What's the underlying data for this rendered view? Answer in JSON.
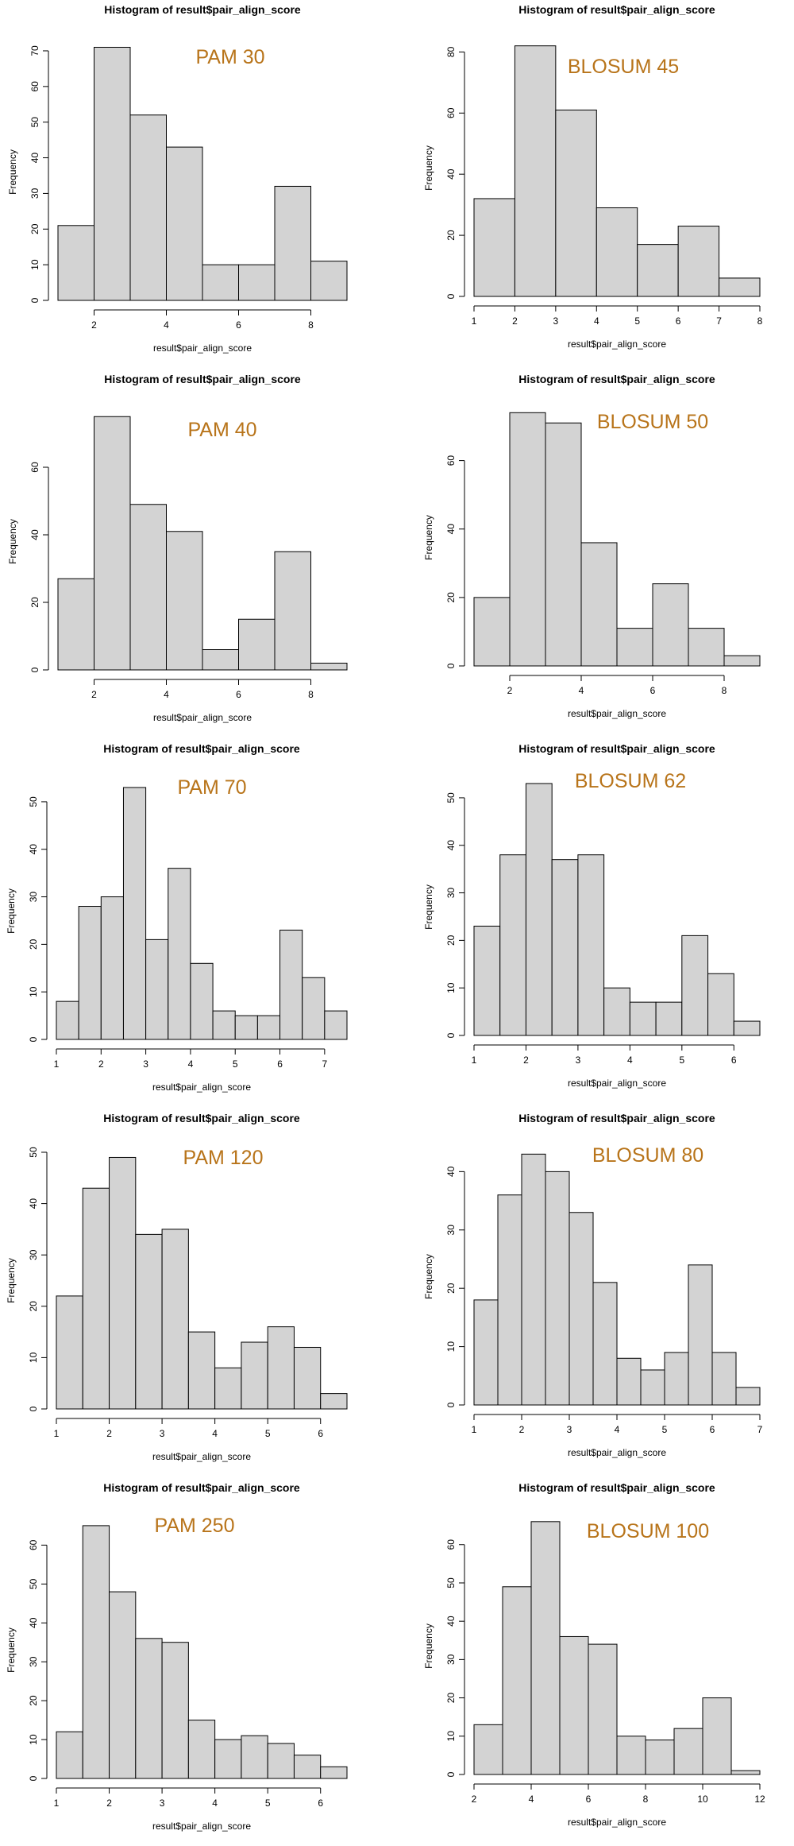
{
  "colors": {
    "bar_fill": "#d3d3d3",
    "bar_stroke": "#000000",
    "annotation": "#b8741a"
  },
  "chart_data": [
    {
      "type": "bar",
      "title": "Histogram of result$pair_align_score",
      "xlabel": "result$pair_align_score",
      "ylabel": "Frequency",
      "annotation": "PAM 30",
      "grid": false,
      "bins": [
        [
          1,
          2
        ],
        [
          2,
          3
        ],
        [
          3,
          4
        ],
        [
          4,
          5
        ],
        [
          5,
          6
        ],
        [
          6,
          7
        ],
        [
          7,
          8
        ],
        [
          8,
          9
        ]
      ],
      "values": [
        21,
        71,
        52,
        43,
        10,
        10,
        32,
        11
      ],
      "xticks": [
        2,
        4,
        6,
        8
      ],
      "yticks": [
        0,
        10,
        20,
        30,
        40,
        50,
        60,
        70
      ],
      "xlim": [
        1,
        9
      ],
      "ylim": [
        0,
        72
      ]
    },
    {
      "type": "bar",
      "title": "Histogram of result$pair_align_score",
      "xlabel": "result$pair_align_score",
      "ylabel": "Frequency",
      "annotation": "BLOSUM 45",
      "grid": false,
      "bins": [
        [
          1,
          2
        ],
        [
          2,
          3
        ],
        [
          3,
          4
        ],
        [
          4,
          5
        ],
        [
          5,
          6
        ],
        [
          6,
          7
        ],
        [
          7,
          8
        ]
      ],
      "values": [
        32,
        82,
        61,
        29,
        17,
        23,
        6
      ],
      "xticks": [
        1,
        2,
        3,
        4,
        5,
        6,
        7,
        8
      ],
      "yticks": [
        0,
        20,
        40,
        60,
        80
      ],
      "xlim": [
        1,
        8
      ],
      "ylim": [
        0,
        84
      ]
    },
    {
      "type": "bar",
      "title": "Histogram of result$pair_align_score",
      "xlabel": "result$pair_align_score",
      "ylabel": "Frequency",
      "annotation": "PAM 40",
      "grid": false,
      "bins": [
        [
          1,
          2
        ],
        [
          2,
          3
        ],
        [
          3,
          4
        ],
        [
          4,
          5
        ],
        [
          5,
          6
        ],
        [
          6,
          7
        ],
        [
          7,
          8
        ],
        [
          8,
          9
        ]
      ],
      "values": [
        27,
        75,
        49,
        41,
        6,
        15,
        35,
        2
      ],
      "xticks": [
        2,
        4,
        6,
        8
      ],
      "yticks": [
        0,
        20,
        40,
        60
      ],
      "xlim": [
        1,
        9
      ],
      "ylim": [
        0,
        76
      ]
    },
    {
      "type": "bar",
      "title": "Histogram of result$pair_align_score",
      "xlabel": "result$pair_align_score",
      "ylabel": "Frequency",
      "annotation": "BLOSUM 50",
      "grid": false,
      "bins": [
        [
          1,
          2
        ],
        [
          2,
          3
        ],
        [
          3,
          4
        ],
        [
          4,
          5
        ],
        [
          5,
          6
        ],
        [
          6,
          7
        ],
        [
          7,
          8
        ],
        [
          8,
          9
        ]
      ],
      "values": [
        20,
        74,
        71,
        36,
        11,
        24,
        11,
        3
      ],
      "xticks": [
        2,
        4,
        6,
        8
      ],
      "yticks": [
        0,
        20,
        40,
        60
      ],
      "xlim": [
        1,
        9
      ],
      "ylim": [
        0,
        75
      ]
    },
    {
      "type": "bar",
      "title": "Histogram of result$pair_align_score",
      "xlabel": "result$pair_align_score",
      "ylabel": "Frequency",
      "annotation": "PAM 70",
      "grid": false,
      "bins": [
        [
          1,
          1.5
        ],
        [
          1.5,
          2
        ],
        [
          2,
          2.5
        ],
        [
          2.5,
          3
        ],
        [
          3,
          3.5
        ],
        [
          3.5,
          4
        ],
        [
          4,
          4.5
        ],
        [
          4.5,
          5
        ],
        [
          5,
          5.5
        ],
        [
          5.5,
          6
        ],
        [
          6,
          6.5
        ],
        [
          6.5,
          7
        ],
        [
          7,
          7.5
        ]
      ],
      "values": [
        8,
        28,
        30,
        53,
        21,
        36,
        16,
        6,
        5,
        5,
        23,
        13,
        6
      ],
      "xticks": [
        1,
        2,
        3,
        4,
        5,
        6,
        7
      ],
      "yticks": [
        0,
        10,
        20,
        30,
        40,
        50
      ],
      "xlim": [
        1,
        7.5
      ],
      "ylim": [
        0,
        54
      ]
    },
    {
      "type": "bar",
      "title": "Histogram of result$pair_align_score",
      "xlabel": "result$pair_align_score",
      "ylabel": "Frequency",
      "annotation": "BLOSUM 62",
      "grid": false,
      "bins": [
        [
          1,
          1.5
        ],
        [
          1.5,
          2
        ],
        [
          2,
          2.5
        ],
        [
          2.5,
          3
        ],
        [
          3,
          3.5
        ],
        [
          3.5,
          4
        ],
        [
          4,
          4.5
        ],
        [
          4.5,
          5
        ],
        [
          5,
          5.5
        ],
        [
          5.5,
          6
        ],
        [
          6,
          6.5
        ]
      ],
      "values": [
        23,
        38,
        53,
        37,
        38,
        10,
        7,
        7,
        21,
        13,
        3
      ],
      "xticks": [
        1,
        2,
        3,
        4,
        5,
        6
      ],
      "yticks": [
        0,
        10,
        20,
        30,
        40,
        50
      ],
      "xlim": [
        1,
        6.5
      ],
      "ylim": [
        0,
        54
      ]
    },
    {
      "type": "bar",
      "title": "Histogram of result$pair_align_score",
      "xlabel": "result$pair_align_score",
      "ylabel": "Frequency",
      "annotation": "PAM 120",
      "grid": false,
      "bins": [
        [
          1,
          1.5
        ],
        [
          1.5,
          2
        ],
        [
          2,
          2.5
        ],
        [
          2.5,
          3
        ],
        [
          3,
          3.5
        ],
        [
          3.5,
          4
        ],
        [
          4,
          4.5
        ],
        [
          4.5,
          5
        ],
        [
          5,
          5.5
        ],
        [
          5.5,
          6
        ],
        [
          6,
          6.5
        ]
      ],
      "values": [
        22,
        43,
        49,
        34,
        35,
        15,
        8,
        13,
        16,
        12,
        3
      ],
      "xticks": [
        1,
        2,
        3,
        4,
        5,
        6
      ],
      "yticks": [
        0,
        10,
        20,
        30,
        40,
        50
      ],
      "xlim": [
        1,
        6.5
      ],
      "ylim": [
        0,
        50
      ]
    },
    {
      "type": "bar",
      "title": "Histogram of result$pair_align_score",
      "xlabel": "result$pair_align_score",
      "ylabel": "Frequency",
      "annotation": "BLOSUM 80",
      "grid": false,
      "bins": [
        [
          1,
          1.5
        ],
        [
          1.5,
          2
        ],
        [
          2,
          2.5
        ],
        [
          2.5,
          3
        ],
        [
          3,
          3.5
        ],
        [
          3.5,
          4
        ],
        [
          4,
          4.5
        ],
        [
          4.5,
          5
        ],
        [
          5,
          5.5
        ],
        [
          5.5,
          6
        ],
        [
          6,
          6.5
        ],
        [
          6.5,
          7
        ]
      ],
      "values": [
        18,
        36,
        43,
        40,
        33,
        21,
        8,
        6,
        9,
        24,
        9,
        3
      ],
      "xticks": [
        1,
        2,
        3,
        4,
        5,
        6,
        7
      ],
      "yticks": [
        0,
        10,
        20,
        30,
        40
      ],
      "xlim": [
        1,
        7
      ],
      "ylim": [
        0,
        44
      ]
    },
    {
      "type": "bar",
      "title": "Histogram of result$pair_align_score",
      "xlabel": "result$pair_align_score",
      "ylabel": "Frequency",
      "annotation": "PAM 250",
      "grid": false,
      "bins": [
        [
          1,
          1.5
        ],
        [
          1.5,
          2
        ],
        [
          2,
          2.5
        ],
        [
          2.5,
          3
        ],
        [
          3,
          3.5
        ],
        [
          3.5,
          4
        ],
        [
          4,
          4.5
        ],
        [
          4.5,
          5
        ],
        [
          5,
          5.5
        ],
        [
          5.5,
          6
        ],
        [
          6,
          6.5
        ]
      ],
      "values": [
        12,
        65,
        48,
        36,
        35,
        15,
        10,
        11,
        9,
        6,
        3
      ],
      "xticks": [
        1,
        2,
        3,
        4,
        5,
        6
      ],
      "yticks": [
        0,
        10,
        20,
        30,
        40,
        50,
        60
      ],
      "xlim": [
        1,
        6.5
      ],
      "ylim": [
        0,
        66
      ]
    },
    {
      "type": "bar",
      "title": "Histogram of result$pair_align_score",
      "xlabel": "result$pair_align_score",
      "ylabel": "Frequency",
      "annotation": "BLOSUM 100",
      "grid": false,
      "bins": [
        [
          2,
          3
        ],
        [
          3,
          4
        ],
        [
          4,
          5
        ],
        [
          5,
          6
        ],
        [
          6,
          7
        ],
        [
          7,
          8
        ],
        [
          8,
          9
        ],
        [
          9,
          10
        ],
        [
          10,
          11
        ],
        [
          11,
          12
        ]
      ],
      "values": [
        13,
        49,
        66,
        36,
        34,
        10,
        9,
        12,
        20,
        1
      ],
      "xticks": [
        2,
        4,
        6,
        8,
        10,
        12
      ],
      "yticks": [
        0,
        10,
        20,
        30,
        40,
        50,
        60
      ],
      "xlim": [
        2,
        12
      ],
      "ylim": [
        0,
        67
      ]
    }
  ]
}
